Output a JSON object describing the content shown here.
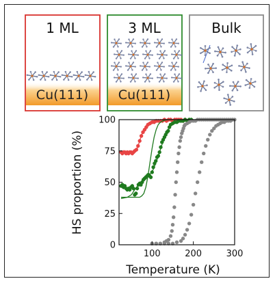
{
  "panels": [
    {
      "title": "1 ML",
      "substrate": "Cu(111)",
      "border_color": "#d9322e"
    },
    {
      "title": "3 ML",
      "substrate": "Cu(111)",
      "border_color": "#2e8b2e"
    },
    {
      "title": "Bulk",
      "substrate": "",
      "border_color": "#8a8a8a"
    }
  ],
  "chart_data": {
    "type": "scatter",
    "xlabel": "Temperature (K)",
    "ylabel": "HS proportion (%)",
    "xlim": [
      20,
      300
    ],
    "ylim": [
      0,
      100
    ],
    "xticks": [
      100,
      200,
      300
    ],
    "yticks": [
      0,
      25,
      50,
      75,
      100
    ],
    "grid": false,
    "series": [
      {
        "color": "#e84545",
        "marker": "circle",
        "x": [
          25,
          28,
          31,
          34,
          37,
          40,
          43,
          46,
          49,
          52,
          55,
          58,
          62,
          66,
          70,
          74,
          78,
          82,
          86,
          90,
          95,
          100,
          105,
          110,
          115,
          120,
          125,
          130,
          135,
          140,
          145,
          150,
          155,
          160,
          165,
          170,
          175,
          180
        ],
        "y": [
          74,
          73,
          74,
          74,
          73,
          74,
          73,
          74,
          74,
          73,
          74,
          75,
          76,
          79,
          83,
          87,
          90,
          92,
          94,
          96,
          97,
          98,
          98,
          99,
          99,
          99,
          99,
          100,
          99,
          100,
          100,
          99,
          100,
          100,
          100,
          100,
          99,
          100
        ]
      },
      {
        "color": "#e84545",
        "marker": "line",
        "x": [
          25,
          40,
          55,
          60,
          65,
          70,
          75,
          80,
          85,
          90,
          100,
          110,
          120,
          140,
          180
        ],
        "y": [
          74,
          74,
          74,
          75,
          78,
          83,
          88,
          92,
          95,
          97,
          99,
          99.5,
          100,
          100,
          100
        ]
      },
      {
        "color": "#1f7a1f",
        "marker": "circle",
        "x": [
          25,
          28,
          31,
          34,
          37,
          40,
          43,
          46,
          49,
          52,
          55,
          58,
          61,
          64,
          67,
          70,
          73,
          76,
          79,
          82,
          85,
          88,
          91,
          94,
          97,
          100,
          103,
          106,
          109,
          112,
          115,
          118,
          121,
          124,
          127,
          130,
          133,
          136,
          139,
          142,
          145,
          150,
          155,
          160,
          165,
          170,
          175,
          180,
          185,
          190,
          195
        ],
        "y": [
          47,
          48,
          46,
          47,
          45,
          44,
          45,
          44,
          46,
          47,
          45,
          40,
          41,
          45,
          48,
          49,
          48,
          50,
          52,
          53,
          54,
          55,
          56,
          55,
          54,
          58,
          62,
          65,
          67,
          70,
          71,
          74,
          78,
          82,
          84,
          86,
          88,
          90,
          91,
          94,
          96,
          97,
          98,
          98,
          99,
          99,
          99,
          100,
          99,
          100,
          100
        ]
      },
      {
        "color": "#1f7a1f",
        "marker": "line",
        "x": [
          25,
          40,
          60,
          70,
          75,
          80,
          85,
          90,
          95,
          100,
          105,
          110,
          115,
          120,
          130,
          140,
          160,
          195
        ],
        "y": [
          38,
          38,
          38,
          38,
          39,
          41,
          46,
          55,
          66,
          77,
          86,
          92,
          96,
          98,
          99.5,
          100,
          100,
          100
        ]
      },
      {
        "color": "#1f7a1f",
        "marker": "line",
        "x": [
          25,
          40,
          50,
          60,
          70,
          80,
          90,
          100,
          110,
          120,
          130,
          140,
          150,
          160,
          170,
          195
        ],
        "y": [
          37,
          38,
          40,
          45,
          49,
          52,
          55,
          58,
          66,
          76,
          86,
          93,
          97,
          99,
          100,
          100
        ]
      },
      {
        "color": "#888888",
        "marker": "circle",
        "x": [
          100,
          110,
          120,
          130,
          135,
          140,
          145,
          148,
          150,
          152,
          154,
          156,
          158,
          160,
          162,
          164,
          166,
          168,
          170,
          172,
          174,
          176,
          178,
          180,
          185,
          190,
          195,
          200,
          205,
          210,
          215,
          220,
          225,
          230,
          235,
          240,
          245,
          250,
          255,
          260,
          265,
          270,
          275,
          280,
          285,
          290,
          295
        ],
        "y": [
          1,
          1,
          1,
          2,
          3,
          4,
          7,
          11,
          16,
          22,
          30,
          40,
          50,
          58,
          66,
          73,
          78,
          83,
          86,
          89,
          91,
          93,
          95,
          96,
          97,
          98,
          99,
          99,
          99,
          100,
          100,
          100,
          100,
          100,
          100,
          100,
          100,
          100,
          100,
          100,
          100,
          100,
          100,
          100,
          100,
          100,
          100
        ]
      },
      {
        "color": "#888888",
        "marker": "circle",
        "x": [
          100,
          110,
          120,
          130,
          140,
          150,
          160,
          170,
          175,
          180,
          185,
          190,
          195,
          200,
          205,
          210,
          215,
          220,
          225,
          230,
          235,
          240,
          245,
          250,
          255,
          260,
          265,
          270,
          275,
          280,
          285,
          290,
          295,
          300
        ],
        "y": [
          1,
          1,
          1,
          1,
          1,
          1,
          2,
          3,
          5,
          8,
          12,
          17,
          24,
          32,
          41,
          50,
          58,
          66,
          73,
          79,
          84,
          88,
          91,
          93,
          95,
          96,
          97,
          98,
          98,
          99,
          99,
          99,
          100,
          100
        ]
      }
    ]
  }
}
